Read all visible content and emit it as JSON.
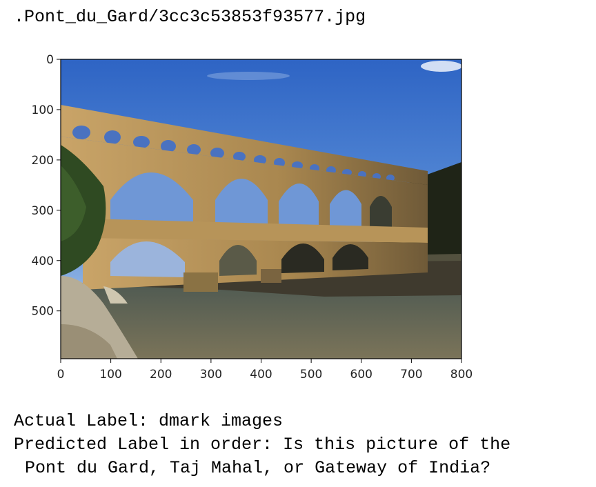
{
  "header": {
    "filename": ".Pont_du_Gard/3cc3c53853f93577.jpg"
  },
  "plot": {
    "x_ticks": [
      "0",
      "100",
      "200",
      "300",
      "400",
      "500",
      "600",
      "700",
      "800"
    ],
    "y_ticks": [
      "0",
      "100",
      "200",
      "300",
      "400",
      "500"
    ],
    "image_content": "photo-pont-du-gard-aqueduct"
  },
  "result": {
    "actual_label": "Actual Label: dmark images",
    "predicted_line1": "Predicted Label in order: Is this picture of the",
    "predicted_line2": "Pont du Gard, Taj Mahal, or Gateway of India?"
  }
}
